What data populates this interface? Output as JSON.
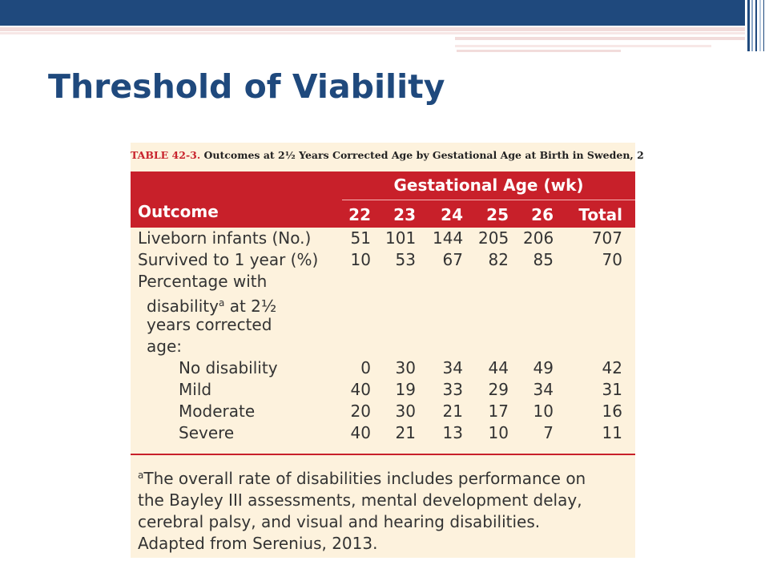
{
  "slide_title": "Threshold of Viability",
  "table": {
    "caption_label": "TABLE 42-3.",
    "caption_text": "Outcomes at 2½ Years Corrected Age by Gestational Age at Birth in Sweden, 2",
    "header_group": "Gestational Age (wk)",
    "header_outcome": "Outcome",
    "columns": [
      "22",
      "23",
      "24",
      "25",
      "26",
      "Total"
    ],
    "rows": [
      {
        "label": "Liveborn infants (No.)",
        "values": [
          "51",
          "101",
          "144",
          "205",
          "206",
          "707"
        ]
      },
      {
        "label": "Survived to 1 year (%)",
        "values": [
          "10",
          "53",
          "67",
          "82",
          "85",
          "70"
        ]
      },
      {
        "label": "Percentage with",
        "values": []
      },
      {
        "label": "disability",
        "sup": "a",
        "label_after": " at 2½",
        "values": []
      },
      {
        "label": "years corrected",
        "values": []
      },
      {
        "label": "age:",
        "values": []
      },
      {
        "label": "No disability",
        "values": [
          "0",
          "30",
          "34",
          "44",
          "49",
          "42"
        ]
      },
      {
        "label": "Mild",
        "values": [
          "40",
          "19",
          "33",
          "29",
          "34",
          "31"
        ]
      },
      {
        "label": "Moderate",
        "values": [
          "20",
          "30",
          "21",
          "17",
          "10",
          "16"
        ]
      },
      {
        "label": "Severe",
        "values": [
          "40",
          "21",
          "13",
          "10",
          "7",
          "11"
        ]
      }
    ],
    "footnote_sup": "a",
    "footnote_lines": [
      "The overall rate of disabilities includes performance on",
      "the Bayley III assessments, mental development delay,",
      "cerebral palsy, and visual and hearing disabilities.",
      "Adapted from Serenius, 2013."
    ]
  },
  "colors": {
    "title": "#1f497d",
    "header_band": "#1f497d",
    "table_header": "#c8202a",
    "table_body": "#fdf2dd"
  }
}
